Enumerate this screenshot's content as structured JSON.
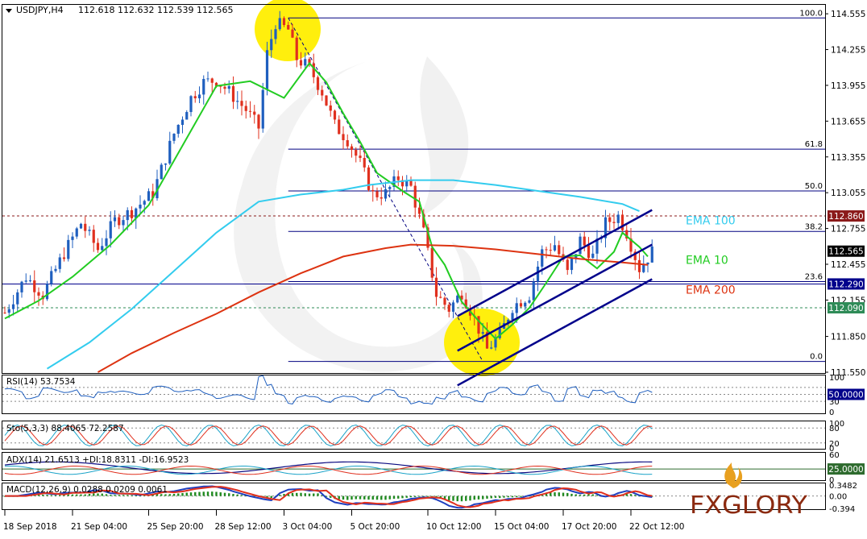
{
  "chart_data": {
    "type": "line",
    "title": "USDJPY,H4",
    "ohlc_header": "112.618 112.632 112.539 112.565",
    "price_axis": {
      "ylim": [
        111.55,
        114.63
      ],
      "ticks": [
        "114.555",
        "114.255",
        "113.955",
        "113.655",
        "113.355",
        "113.055",
        "112.755",
        "112.455",
        "112.155",
        "111.850",
        "111.550"
      ]
    },
    "x_ticks": [
      {
        "label": "18 Sep 2018",
        "idx": 0
      },
      {
        "label": "21 Sep 04:00",
        "idx": 16
      },
      {
        "label": "25 Sep 20:00",
        "idx": 34
      },
      {
        "label": "28 Sep 12:00",
        "idx": 50
      },
      {
        "label": "3 Oct 04:00",
        "idx": 66
      },
      {
        "label": "5 Oct 20:00",
        "idx": 82
      },
      {
        "label": "10 Oct 12:00",
        "idx": 100
      },
      {
        "label": "15 Oct 04:00",
        "idx": 116
      },
      {
        "label": "17 Oct 20:00",
        "idx": 132
      },
      {
        "label": "22 Oct 12:00",
        "idx": 148
      }
    ],
    "price_tags": [
      {
        "value": 112.86,
        "label": "112.860",
        "color": "#8b1a1a"
      },
      {
        "value": 112.565,
        "label": "112.565",
        "color": "#000000"
      },
      {
        "value": 112.29,
        "label": "112.290",
        "color": "#00008b"
      },
      {
        "value": 112.09,
        "label": "112.090",
        "color": "#2e8b57"
      }
    ],
    "horizontal_lines": [
      {
        "value": 112.86,
        "style": "dashed",
        "color": "#8b1a1a"
      },
      {
        "value": 112.29,
        "style": "solid",
        "color": "#00008b"
      },
      {
        "value": 112.09,
        "style": "dashed",
        "color": "#2e8b57"
      }
    ],
    "fibonacci": {
      "color": "#000080",
      "start_idx": 67,
      "levels": [
        {
          "label": "100.0",
          "value": 114.52
        },
        {
          "label": "61.8",
          "value": 113.42
        },
        {
          "label": "50.0",
          "value": 113.07
        },
        {
          "label": "38.2",
          "value": 112.73
        },
        {
          "label": "23.6",
          "value": 112.31
        },
        {
          "label": "0.0",
          "value": 111.64
        }
      ]
    },
    "channel": {
      "color": "#00008b",
      "lines": [
        {
          "from": [
            107,
            112.02
          ],
          "to": [
            153,
            112.91
          ]
        },
        {
          "from": [
            107,
            111.73
          ],
          "to": [
            153,
            112.62
          ]
        },
        {
          "from": [
            107,
            111.44
          ],
          "to": [
            153,
            112.33
          ]
        }
      ]
    },
    "series": [
      {
        "name": "EMA 10",
        "color": "#22cc22",
        "values": [
          [
            0,
            112.0
          ],
          [
            8,
            112.15
          ],
          [
            16,
            112.35
          ],
          [
            25,
            112.62
          ],
          [
            34,
            112.95
          ],
          [
            42,
            113.45
          ],
          [
            50,
            113.95
          ],
          [
            58,
            113.99
          ],
          [
            66,
            113.85
          ],
          [
            72,
            114.14
          ],
          [
            76,
            113.98
          ],
          [
            80,
            113.72
          ],
          [
            84,
            113.48
          ],
          [
            88,
            113.22
          ],
          [
            94,
            113.07
          ],
          [
            98,
            112.98
          ],
          [
            101,
            112.6
          ],
          [
            104,
            112.45
          ],
          [
            108,
            112.14
          ],
          [
            112,
            111.98
          ],
          [
            116,
            111.83
          ],
          [
            120,
            111.95
          ],
          [
            124,
            112.09
          ],
          [
            128,
            112.3
          ],
          [
            132,
            112.52
          ],
          [
            136,
            112.53
          ],
          [
            140,
            112.42
          ],
          [
            144,
            112.56
          ],
          [
            146,
            112.72
          ],
          [
            150,
            112.6
          ],
          [
            152,
            112.52
          ]
        ]
      },
      {
        "name": "EMA 100",
        "color": "#33ccee",
        "values": [
          [
            10,
            111.58
          ],
          [
            20,
            111.8
          ],
          [
            30,
            112.08
          ],
          [
            40,
            112.4
          ],
          [
            50,
            112.72
          ],
          [
            60,
            112.98
          ],
          [
            70,
            113.04
          ],
          [
            80,
            113.08
          ],
          [
            86,
            113.12
          ],
          [
            96,
            113.16
          ],
          [
            106,
            113.16
          ],
          [
            116,
            113.12
          ],
          [
            126,
            113.07
          ],
          [
            136,
            113.02
          ],
          [
            146,
            112.96
          ],
          [
            150,
            112.9
          ]
        ]
      },
      {
        "name": "EMA 200",
        "color": "#dd3311",
        "values": [
          [
            22,
            111.55
          ],
          [
            30,
            111.71
          ],
          [
            40,
            111.88
          ],
          [
            50,
            112.04
          ],
          [
            60,
            112.22
          ],
          [
            70,
            112.38
          ],
          [
            80,
            112.52
          ],
          [
            90,
            112.59
          ],
          [
            96,
            112.62
          ],
          [
            106,
            112.61
          ],
          [
            116,
            112.58
          ],
          [
            126,
            112.54
          ],
          [
            136,
            112.5
          ],
          [
            146,
            112.47
          ],
          [
            152,
            112.45
          ]
        ]
      }
    ],
    "legend_labels": [
      {
        "text": "EMA 100",
        "color": "#33ccee",
        "value": 112.83
      },
      {
        "text": "EMA 10",
        "color": "#22cc22",
        "value": 112.5
      },
      {
        "text": "EMA 200",
        "color": "#dd3311",
        "value": 112.25
      }
    ],
    "candles_spec": {
      "count": 154,
      "up_color": "#1f5fbf",
      "down_color": "#e0301e",
      "path": [
        [
          0,
          112.05
        ],
        [
          5,
          112.35
        ],
        [
          9,
          112.2
        ],
        [
          14,
          112.55
        ],
        [
          18,
          112.8
        ],
        [
          22,
          112.58
        ],
        [
          26,
          112.82
        ],
        [
          30,
          112.9
        ],
        [
          35,
          113.05
        ],
        [
          40,
          113.55
        ],
        [
          44,
          113.85
        ],
        [
          47,
          113.98
        ],
        [
          50,
          114.0
        ],
        [
          53,
          113.9
        ],
        [
          57,
          113.75
        ],
        [
          60,
          113.6
        ],
        [
          62,
          114.22
        ],
        [
          64,
          114.48
        ],
        [
          67,
          114.42
        ],
        [
          69,
          114.18
        ],
        [
          72,
          114.1
        ],
        [
          75,
          113.9
        ],
        [
          78,
          113.62
        ],
        [
          81,
          113.5
        ],
        [
          84,
          113.3
        ],
        [
          87,
          113.04
        ],
        [
          90,
          113.05
        ],
        [
          93,
          113.18
        ],
        [
          96,
          113.1
        ],
        [
          99,
          112.72
        ],
        [
          102,
          112.2
        ],
        [
          105,
          112.08
        ],
        [
          108,
          112.22
        ],
        [
          111,
          112.0
        ],
        [
          114,
          111.74
        ],
        [
          117,
          111.86
        ],
        [
          120,
          112.1
        ],
        [
          124,
          112.2
        ],
        [
          127,
          112.56
        ],
        [
          130,
          112.62
        ],
        [
          133,
          112.38
        ],
        [
          136,
          112.66
        ],
        [
          139,
          112.52
        ],
        [
          142,
          112.8
        ],
        [
          145,
          112.86
        ],
        [
          147,
          112.72
        ],
        [
          150,
          112.42
        ],
        [
          153,
          112.56
        ]
      ]
    },
    "rsi": {
      "label": "RSI(14) 53.7534",
      "level_label": "50.0000",
      "axis_ticks": [
        "100",
        "30",
        "0"
      ],
      "ylim": [
        0,
        100
      ],
      "levels": [
        70,
        50,
        30
      ]
    },
    "stochastic": {
      "label": "Sto(5,3,3) 88.4065 72.2587",
      "axis_ticks": [
        "100",
        "80",
        "20",
        "0"
      ],
      "ylim": [
        0,
        100
      ],
      "levels": [
        80,
        20
      ]
    },
    "adx": {
      "label": "ADX(14) 21.6513 +DI:18.8311 -DI:16.9523",
      "level_label": "25.0000",
      "axis_ticks": [
        "60",
        "0"
      ],
      "ylim": [
        0,
        60
      ],
      "levels": [
        25
      ]
    },
    "macd": {
      "label": "MACD(12,26,9) 0.0288 0.0209 0.0061",
      "axis_ticks": [
        "0.3482",
        "0.00",
        "-0.394"
      ],
      "ylim": [
        -0.394,
        0.3482
      ]
    }
  },
  "logo": {
    "text": "FXGLORY"
  }
}
